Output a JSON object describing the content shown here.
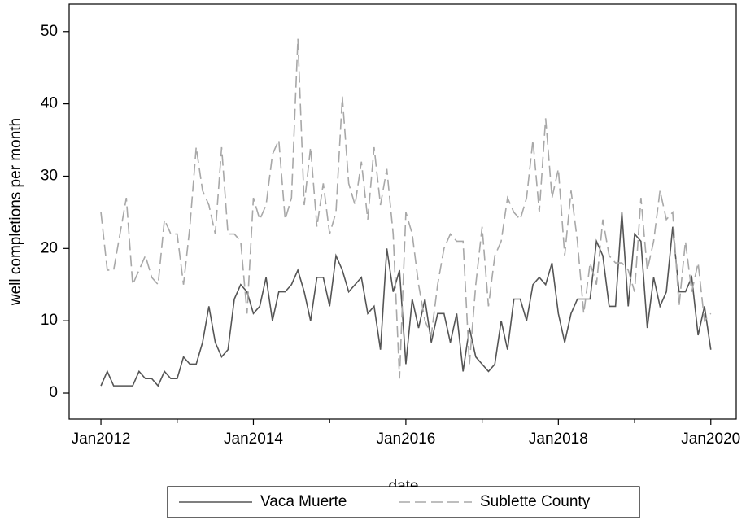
{
  "chart_data": {
    "type": "line",
    "xlabel": "date",
    "ylabel": "well completions per month",
    "x": [
      "Jan2012",
      "Feb2012",
      "Mar2012",
      "Apr2012",
      "May2012",
      "Jun2012",
      "Jul2012",
      "Aug2012",
      "Sep2012",
      "Oct2012",
      "Nov2012",
      "Dec2012",
      "Jan2013",
      "Feb2013",
      "Mar2013",
      "Apr2013",
      "May2013",
      "Jun2013",
      "Jul2013",
      "Aug2013",
      "Sep2013",
      "Oct2013",
      "Nov2013",
      "Dec2013",
      "Jan2014",
      "Feb2014",
      "Mar2014",
      "Apr2014",
      "May2014",
      "Jun2014",
      "Jul2014",
      "Aug2014",
      "Sep2014",
      "Oct2014",
      "Nov2014",
      "Dec2014",
      "Jan2015",
      "Feb2015",
      "Mar2015",
      "Apr2015",
      "May2015",
      "Jun2015",
      "Jul2015",
      "Aug2015",
      "Sep2015",
      "Oct2015",
      "Nov2015",
      "Dec2015",
      "Jan2016",
      "Feb2016",
      "Mar2016",
      "Apr2016",
      "May2016",
      "Jun2016",
      "Jul2016",
      "Aug2016",
      "Sep2016",
      "Oct2016",
      "Nov2016",
      "Dec2016",
      "Jan2017",
      "Feb2017",
      "Mar2017",
      "Apr2017",
      "May2017",
      "Jun2017",
      "Jul2017",
      "Aug2017",
      "Sep2017",
      "Oct2017",
      "Nov2017",
      "Dec2017",
      "Jan2018",
      "Feb2018",
      "Mar2018",
      "Apr2018",
      "May2018",
      "Jun2018",
      "Jul2018",
      "Aug2018",
      "Sep2018",
      "Oct2018",
      "Nov2018",
      "Dec2018",
      "Jan2019",
      "Feb2019",
      "Mar2019",
      "Apr2019",
      "May2019",
      "Jun2019",
      "Jul2019",
      "Aug2019",
      "Sep2019",
      "Oct2019",
      "Nov2019",
      "Dec2019",
      "Jan2020"
    ],
    "series": [
      {
        "name": "Vaca Muerte",
        "color": "#555555",
        "dashed": false,
        "values": [
          1,
          3,
          1,
          1,
          1,
          1,
          3,
          2,
          2,
          1,
          3,
          2,
          2,
          5,
          4,
          4,
          7,
          12,
          7,
          5,
          6,
          13,
          15,
          14,
          11,
          12,
          16,
          10,
          14,
          14,
          15,
          17,
          14,
          10,
          16,
          16,
          12,
          19,
          17,
          14,
          15,
          16,
          11,
          12,
          6,
          20,
          14,
          17,
          4,
          13,
          9,
          13,
          7,
          11,
          11,
          7,
          11,
          3,
          9,
          5,
          4,
          3,
          4,
          10,
          6,
          13,
          13,
          10,
          15,
          16,
          15,
          18,
          11,
          7,
          11,
          13,
          13,
          13,
          21,
          19,
          12,
          12,
          25,
          12,
          22,
          21,
          9,
          16,
          12,
          14,
          23,
          14,
          14,
          16,
          8,
          12,
          6
        ]
      },
      {
        "name": "Sublette County",
        "color": "#a8a8a8",
        "dashed": true,
        "values": [
          25,
          17,
          17,
          22,
          27,
          15,
          17,
          19,
          16,
          15,
          24,
          22,
          22,
          15,
          23,
          34,
          28,
          26,
          22,
          34,
          22,
          22,
          21,
          11,
          27,
          24,
          26,
          33,
          35,
          24,
          27,
          49,
          26,
          34,
          23,
          29,
          22,
          25,
          41,
          29,
          26,
          32,
          24,
          34,
          26,
          31,
          22,
          2,
          25,
          22,
          15,
          10,
          8,
          15,
          20,
          22,
          21,
          21,
          4,
          15,
          23,
          12,
          19,
          21,
          27,
          25,
          24,
          27,
          35,
          25,
          38,
          27,
          31,
          19,
          28,
          21,
          11,
          18,
          15,
          24,
          19,
          18,
          18,
          17,
          14,
          27,
          17,
          21,
          28,
          24,
          25,
          12,
          21,
          14,
          18,
          10,
          11
        ]
      }
    ],
    "xlim": [
      "Aug2011",
      "May2020"
    ],
    "xticks": [
      "Jan2012",
      "Jan2014",
      "Jan2016",
      "Jan2018",
      "Jan2020"
    ],
    "xminorticks": [
      "Jan2013",
      "Jan2015",
      "Jan2017",
      "Jan2019"
    ],
    "ylim": [
      -3.6,
      53.8
    ],
    "yticks": [
      0,
      10,
      20,
      30,
      40,
      50
    ],
    "grid": false,
    "legend": "bottom"
  }
}
